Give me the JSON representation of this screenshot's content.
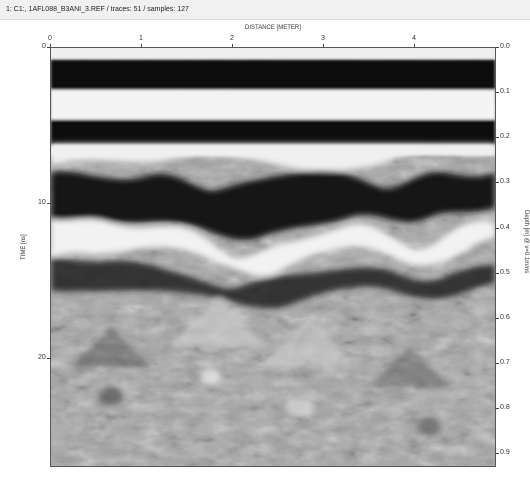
{
  "window": {
    "title": "1: C1:, 1AFL088_B3ANI_3.REF / traces: 51 / samples: 127"
  },
  "plot": {
    "x_axis_title": "DISTANCE [METER]",
    "left_axis_title": "TIME [ns]",
    "right_axis_title": "Depth [m] @ v=0.1m/ns",
    "x_ticks": [
      {
        "label": "0",
        "value": 0
      },
      {
        "label": "1",
        "value": 1
      },
      {
        "label": "2",
        "value": 2
      },
      {
        "label": "3",
        "value": 3
      },
      {
        "label": "4",
        "value": 4
      }
    ],
    "left_ticks": [
      {
        "label": "0",
        "value": 0
      },
      {
        "label": "10",
        "value": 10
      },
      {
        "label": "20",
        "value": 20
      }
    ],
    "right_ticks": [
      {
        "label": "0.0",
        "value": 0.0
      },
      {
        "label": "0.1",
        "value": 0.1
      },
      {
        "label": "0.2",
        "value": 0.2
      },
      {
        "label": "0.3",
        "value": 0.3
      },
      {
        "label": "0.4",
        "value": 0.4
      },
      {
        "label": "0.5",
        "value": 0.5
      },
      {
        "label": "0.6",
        "value": 0.6
      },
      {
        "label": "0.7",
        "value": 0.7
      },
      {
        "label": "0.8",
        "value": 0.8
      },
      {
        "label": "0.9",
        "value": 0.9
      }
    ],
    "x_range": [
      0,
      4.9
    ],
    "time_range": [
      0,
      27
    ],
    "depth_range": [
      0,
      0.93
    ]
  }
}
